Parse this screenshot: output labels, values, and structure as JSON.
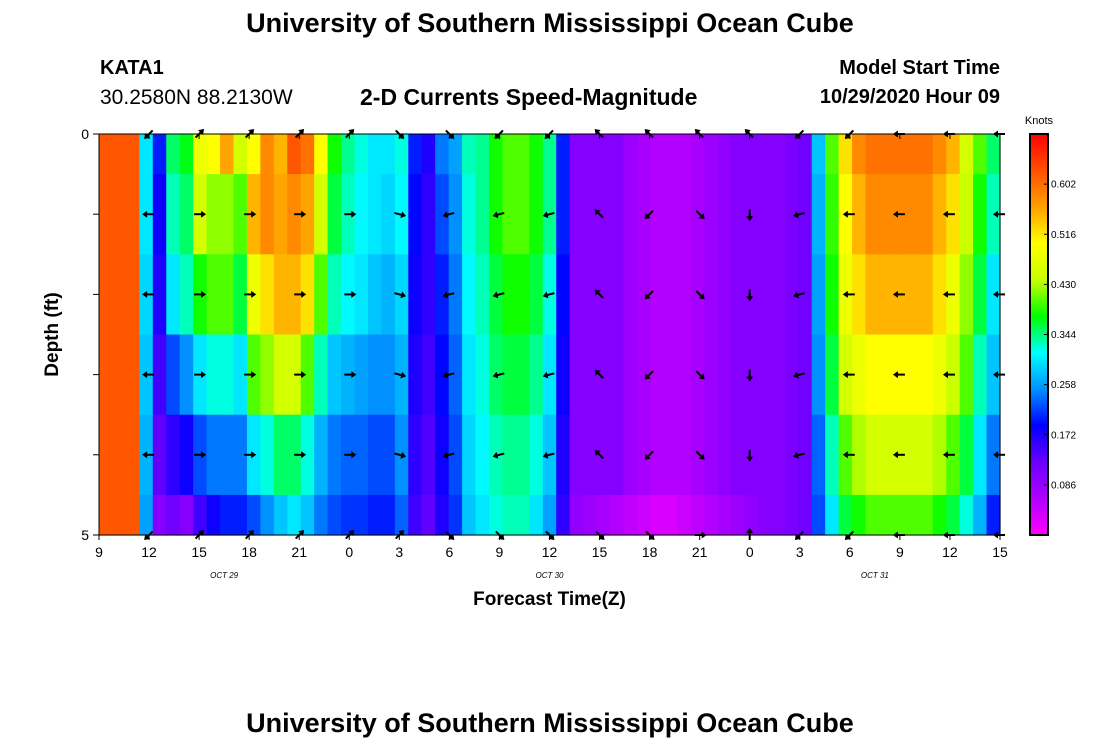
{
  "header": {
    "main_title": "University of Southern Mississippi Ocean Cube",
    "station_id": "KATA1",
    "station_coords": "30.2580N 88.2130W",
    "chart_title": "2-D Currents Speed-Magnitude",
    "model_start_label": "Model Start Time",
    "model_start_value": "10/29/2020 Hour 09"
  },
  "footer": {
    "title": "University of Southern Mississippi Ocean Cube"
  },
  "colors": {
    "scale": [
      "#ff00ff",
      "#b000ff",
      "#6a00ff",
      "#0000ff",
      "#0090ff",
      "#00ffff",
      "#00ff00",
      "#c8ff00",
      "#ffff00",
      "#ffa000",
      "#ff5000",
      "#ff0000"
    ],
    "arrow": "#000000"
  },
  "chart_data": {
    "type": "heatmap",
    "title": "2-D Currents Speed-Magnitude",
    "xlabel": "Forecast Time(Z)",
    "ylabel": "Depth (ft)",
    "x_hours_range": [
      0,
      54
    ],
    "x_ticks": [
      {
        "h": 0,
        "label": "9"
      },
      {
        "h": 3,
        "label": "12"
      },
      {
        "h": 6,
        "label": "15"
      },
      {
        "h": 9,
        "label": "18"
      },
      {
        "h": 12,
        "label": "21"
      },
      {
        "h": 15,
        "label": "0"
      },
      {
        "h": 18,
        "label": "3"
      },
      {
        "h": 21,
        "label": "6"
      },
      {
        "h": 24,
        "label": "9"
      },
      {
        "h": 27,
        "label": "12"
      },
      {
        "h": 30,
        "label": "15"
      },
      {
        "h": 33,
        "label": "18"
      },
      {
        "h": 36,
        "label": "21"
      },
      {
        "h": 39,
        "label": "0"
      },
      {
        "h": 42,
        "label": "3"
      },
      {
        "h": 45,
        "label": "6"
      },
      {
        "h": 48,
        "label": "9"
      },
      {
        "h": 51,
        "label": "12"
      },
      {
        "h": 54,
        "label": "15"
      }
    ],
    "date_labels": [
      {
        "h": 7.5,
        "label": "OCT 29"
      },
      {
        "h": 27,
        "label": "OCT 30"
      },
      {
        "h": 46.5,
        "label": "OCT 31"
      }
    ],
    "y_range": [
      0,
      5
    ],
    "y_tick_values": [
      0,
      1,
      2,
      3,
      4,
      5
    ],
    "y_tick_labels": [
      {
        "value": 0,
        "label": "0"
      },
      {
        "value": 5,
        "label": "5"
      }
    ],
    "colorbar": {
      "unit": "Knots",
      "range": [
        0,
        0.688
      ],
      "ticks": [
        "0.086",
        "0.172",
        "0.258",
        "0.344",
        "0.430",
        "0.516",
        "0.602"
      ]
    },
    "depth_levels": 5,
    "speed_knots": [
      [
        0.62,
        0.62,
        0.62,
        0.3,
        0.2,
        0.35,
        0.37,
        0.48,
        0.5,
        0.56,
        0.45,
        0.5,
        0.58,
        0.55,
        0.62,
        0.6,
        0.5,
        0.38,
        0.34,
        0.32,
        0.3,
        0.3,
        0.32,
        0.2,
        0.17,
        0.24,
        0.26,
        0.33,
        0.34,
        0.38,
        0.4,
        0.4,
        0.38,
        0.34,
        0.2,
        0.1,
        0.1,
        0.1,
        0.1,
        0.08,
        0.07,
        0.06,
        0.06,
        0.06,
        0.07,
        0.08,
        0.09,
        0.1,
        0.1,
        0.1,
        0.1,
        0.11,
        0.12,
        0.28,
        0.4,
        0.52,
        0.58,
        0.6,
        0.6,
        0.6,
        0.6,
        0.6,
        0.58,
        0.55,
        0.45,
        0.4,
        0.35
      ],
      [
        0.62,
        0.62,
        0.62,
        0.3,
        0.18,
        0.33,
        0.35,
        0.45,
        0.42,
        0.42,
        0.4,
        0.55,
        0.58,
        0.56,
        0.58,
        0.56,
        0.45,
        0.36,
        0.33,
        0.31,
        0.3,
        0.29,
        0.31,
        0.19,
        0.16,
        0.22,
        0.25,
        0.32,
        0.34,
        0.38,
        0.4,
        0.4,
        0.38,
        0.34,
        0.2,
        0.1,
        0.1,
        0.1,
        0.1,
        0.08,
        0.07,
        0.06,
        0.06,
        0.06,
        0.07,
        0.08,
        0.09,
        0.1,
        0.1,
        0.1,
        0.1,
        0.11,
        0.12,
        0.27,
        0.39,
        0.5,
        0.55,
        0.58,
        0.58,
        0.58,
        0.58,
        0.58,
        0.55,
        0.52,
        0.44,
        0.38,
        0.33
      ],
      [
        0.62,
        0.62,
        0.62,
        0.29,
        0.17,
        0.3,
        0.33,
        0.38,
        0.4,
        0.4,
        0.36,
        0.48,
        0.52,
        0.55,
        0.55,
        0.52,
        0.4,
        0.33,
        0.31,
        0.3,
        0.28,
        0.27,
        0.29,
        0.18,
        0.16,
        0.2,
        0.24,
        0.31,
        0.33,
        0.36,
        0.38,
        0.38,
        0.36,
        0.32,
        0.19,
        0.1,
        0.1,
        0.1,
        0.1,
        0.08,
        0.07,
        0.06,
        0.06,
        0.06,
        0.07,
        0.08,
        0.09,
        0.1,
        0.1,
        0.1,
        0.1,
        0.11,
        0.12,
        0.26,
        0.38,
        0.48,
        0.52,
        0.55,
        0.55,
        0.55,
        0.55,
        0.55,
        0.52,
        0.48,
        0.42,
        0.36,
        0.3
      ],
      [
        0.62,
        0.62,
        0.62,
        0.28,
        0.15,
        0.22,
        0.25,
        0.3,
        0.32,
        0.32,
        0.3,
        0.4,
        0.42,
        0.45,
        0.45,
        0.4,
        0.33,
        0.28,
        0.27,
        0.26,
        0.25,
        0.25,
        0.27,
        0.17,
        0.15,
        0.19,
        0.23,
        0.3,
        0.32,
        0.35,
        0.36,
        0.36,
        0.34,
        0.3,
        0.18,
        0.1,
        0.1,
        0.1,
        0.1,
        0.08,
        0.07,
        0.06,
        0.06,
        0.06,
        0.07,
        0.08,
        0.09,
        0.1,
        0.1,
        0.1,
        0.1,
        0.11,
        0.12,
        0.25,
        0.36,
        0.45,
        0.48,
        0.5,
        0.5,
        0.5,
        0.5,
        0.5,
        0.48,
        0.44,
        0.4,
        0.33,
        0.28
      ],
      [
        0.62,
        0.62,
        0.62,
        0.27,
        0.13,
        0.16,
        0.18,
        0.22,
        0.24,
        0.24,
        0.24,
        0.3,
        0.32,
        0.35,
        0.35,
        0.32,
        0.27,
        0.24,
        0.23,
        0.23,
        0.22,
        0.22,
        0.25,
        0.16,
        0.14,
        0.18,
        0.22,
        0.29,
        0.31,
        0.33,
        0.34,
        0.34,
        0.32,
        0.28,
        0.17,
        0.1,
        0.1,
        0.1,
        0.1,
        0.08,
        0.07,
        0.06,
        0.06,
        0.06,
        0.07,
        0.08,
        0.09,
        0.1,
        0.1,
        0.1,
        0.1,
        0.11,
        0.12,
        0.23,
        0.33,
        0.4,
        0.43,
        0.45,
        0.45,
        0.45,
        0.45,
        0.45,
        0.43,
        0.4,
        0.36,
        0.3,
        0.24
      ],
      [
        0.62,
        0.62,
        0.62,
        0.26,
        0.1,
        0.12,
        0.1,
        0.15,
        0.18,
        0.2,
        0.2,
        0.22,
        0.25,
        0.28,
        0.3,
        0.28,
        0.24,
        0.22,
        0.21,
        0.21,
        0.2,
        0.2,
        0.23,
        0.15,
        0.13,
        0.17,
        0.21,
        0.28,
        0.3,
        0.32,
        0.33,
        0.33,
        0.3,
        0.26,
        0.16,
        0.09,
        0.08,
        0.07,
        0.06,
        0.05,
        0.04,
        0.03,
        0.03,
        0.04,
        0.05,
        0.06,
        0.07,
        0.08,
        0.09,
        0.1,
        0.1,
        0.11,
        0.12,
        0.22,
        0.3,
        0.36,
        0.38,
        0.4,
        0.4,
        0.4,
        0.4,
        0.4,
        0.38,
        0.36,
        0.32,
        0.27,
        0.2
      ]
    ],
    "arrow_times_h": [
      3,
      6,
      9,
      12,
      15,
      18,
      21,
      24,
      27,
      30,
      33,
      36,
      39,
      42,
      45,
      48,
      51,
      54
    ],
    "arrow_depths": [
      0,
      1,
      2,
      3,
      4,
      5
    ],
    "arrow_directions_deg": [
      [
        225,
        45,
        45,
        45,
        45,
        315,
        315,
        225,
        225,
        135,
        135,
        135,
        135,
        225,
        225,
        180,
        180,
        180
      ],
      [
        180,
        0,
        0,
        0,
        0,
        345,
        195,
        195,
        195,
        135,
        225,
        315,
        270,
        195,
        180,
        180,
        180,
        180
      ],
      [
        180,
        0,
        0,
        0,
        0,
        345,
        195,
        195,
        195,
        135,
        225,
        315,
        270,
        195,
        180,
        180,
        180,
        180
      ],
      [
        180,
        0,
        0,
        0,
        0,
        345,
        195,
        195,
        195,
        135,
        225,
        315,
        270,
        195,
        180,
        180,
        180,
        180
      ],
      [
        180,
        0,
        0,
        0,
        0,
        345,
        195,
        195,
        195,
        135,
        225,
        315,
        270,
        195,
        180,
        180,
        180,
        180
      ],
      [
        225,
        45,
        45,
        45,
        45,
        45,
        315,
        315,
        315,
        315,
        315,
        0,
        90,
        225,
        225,
        180,
        180,
        180
      ]
    ]
  }
}
